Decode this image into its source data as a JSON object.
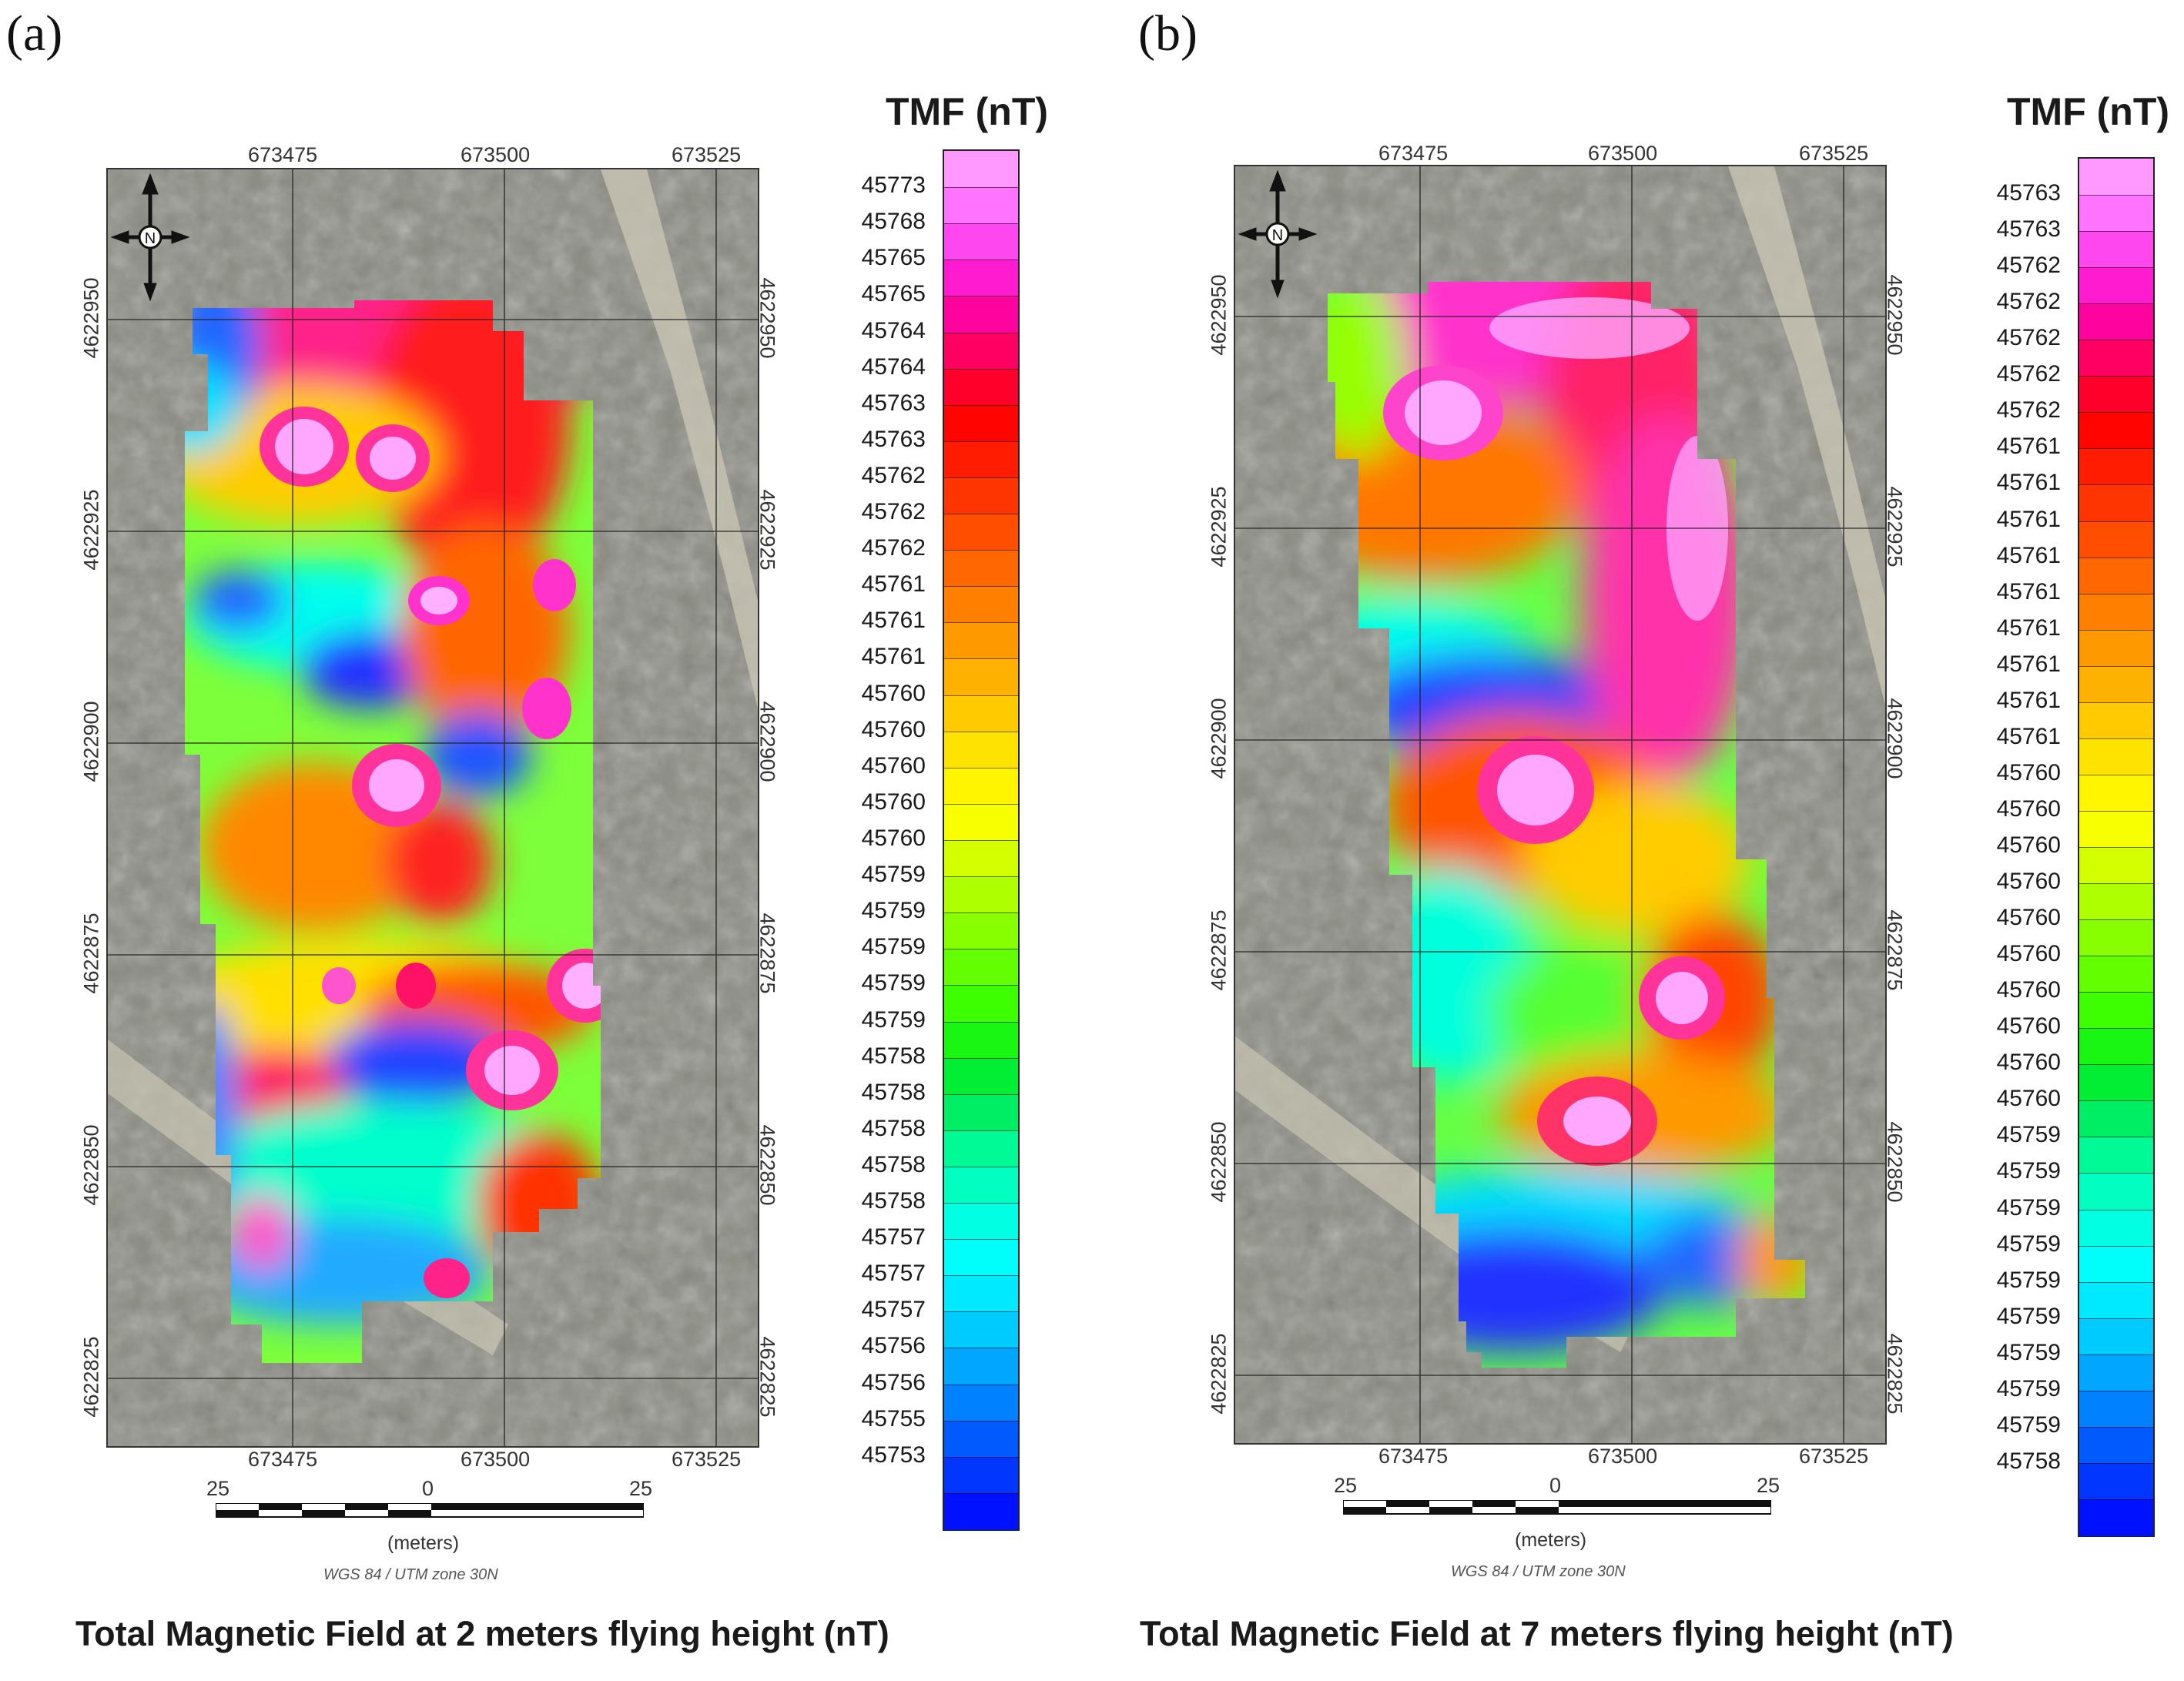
{
  "panels": [
    {
      "letter": "(a)",
      "legend_title": "TMF (nT)",
      "legend_values": [
        "45773",
        "45768",
        "45765",
        "45765",
        "45764",
        "45764",
        "45763",
        "45763",
        "45762",
        "45762",
        "45762",
        "45761",
        "45761",
        "45761",
        "45760",
        "45760",
        "45760",
        "45760",
        "45760",
        "45759",
        "45759",
        "45759",
        "45759",
        "45759",
        "45758",
        "45758",
        "45758",
        "45758",
        "45758",
        "45757",
        "45757",
        "45757",
        "45756",
        "45756",
        "45755",
        "45753"
      ],
      "x_ticks": [
        "673475",
        "673500",
        "673525"
      ],
      "y_ticks": [
        "4622950",
        "4622925",
        "4622900",
        "4622875",
        "4622850",
        "4622825"
      ],
      "scale_labels": [
        "25",
        "0",
        "25"
      ],
      "scale_units": "(meters)",
      "projection": "WGS 84 / UTM zone 30N",
      "caption": "Total Magnetic Field at 2 meters flying height (nT)"
    },
    {
      "letter": "(b)",
      "legend_title": "TMF (nT)",
      "legend_values": [
        "45763",
        "45763",
        "45762",
        "45762",
        "45762",
        "45762",
        "45762",
        "45761",
        "45761",
        "45761",
        "45761",
        "45761",
        "45761",
        "45761",
        "45761",
        "45761",
        "45760",
        "45760",
        "45760",
        "45760",
        "45760",
        "45760",
        "45760",
        "45760",
        "45760",
        "45760",
        "45759",
        "45759",
        "45759",
        "45759",
        "45759",
        "45759",
        "45759",
        "45759",
        "45759",
        "45758"
      ],
      "x_ticks": [
        "673475",
        "673500",
        "673525"
      ],
      "y_ticks": [
        "4622950",
        "4622925",
        "4622900",
        "4622875",
        "4622850",
        "4622825"
      ],
      "scale_labels": [
        "25",
        "0",
        "25"
      ],
      "scale_units": "(meters)",
      "projection": "WGS 84 / UTM zone 30N",
      "caption": "Total Magnetic Field at 7 meters flying height (nT)"
    }
  ],
  "colors": {
    "ramp": [
      "#ff99ff",
      "#ff66ff",
      "#ff22dd",
      "#ff0099",
      "#ff0044",
      "#ff0000",
      "#ff2200",
      "#ff4400",
      "#ff6600",
      "#ff8800",
      "#ffaa00",
      "#ffcc00",
      "#ffee00",
      "#ffff00",
      "#ccff00",
      "#99ff00",
      "#66ff00",
      "#33ff00",
      "#00ee22",
      "#00ee66",
      "#00ffaa",
      "#00ffdd",
      "#00ffff",
      "#00ddff",
      "#00aaff",
      "#0077ff",
      "#0044ff",
      "#0011ff"
    ],
    "map_background": "#8d8f85",
    "north_arrow": "#111111"
  },
  "icons": [
    "north-arrow-icon"
  ]
}
